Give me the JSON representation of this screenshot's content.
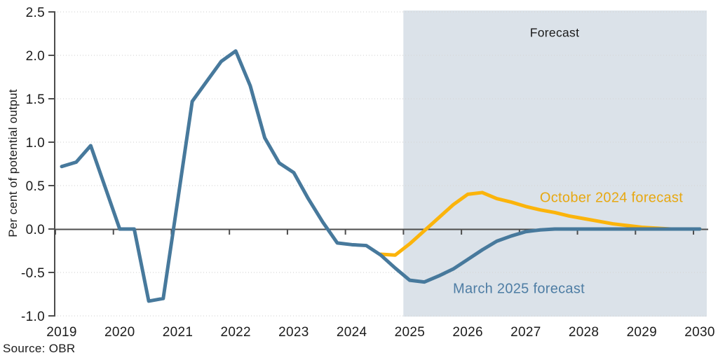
{
  "source": "Source: OBR",
  "chart_data": {
    "type": "line",
    "title": "",
    "xlabel": "",
    "ylabel": "Per cent of potential output",
    "ylim": [
      -1.0,
      2.5
    ],
    "xlim": [
      2018.9,
      2030.1
    ],
    "grid": "horizontal dotted gridlines at 0.5 intervals, solid dark zero line",
    "legend_position": "inline labels next to lines",
    "y_ticks": [
      2.5,
      2.0,
      1.5,
      1.0,
      0.5,
      0.0,
      -0.5,
      -1.0
    ],
    "x_ticks": [
      2019,
      2020,
      2021,
      2022,
      2023,
      2024,
      2025,
      2026,
      2027,
      2028,
      2029,
      2030
    ],
    "axis_color": "#4d4d4d",
    "gridline_color": "#d6d6d6",
    "forecast_region": {
      "label": "Forecast",
      "x_start": 2024.89,
      "x_end": 2030.12,
      "color": "#dbe2e9"
    },
    "series": [
      {
        "name": "October 2024 forecast",
        "color": "#fbb40b",
        "label_color": "#e7a812",
        "x": [
          2024.5,
          2024.75,
          2025.0,
          2025.25,
          2025.5,
          2025.75,
          2026.0,
          2026.25,
          2026.5,
          2026.75,
          2027.0,
          2027.25,
          2027.5,
          2027.75,
          2028.0,
          2028.25,
          2028.5,
          2028.75,
          2029.0,
          2029.25,
          2029.5,
          2029.75,
          2030.0
        ],
        "values": [
          -0.29,
          -0.3,
          -0.17,
          -0.02,
          0.13,
          0.28,
          0.4,
          0.42,
          0.35,
          0.31,
          0.26,
          0.22,
          0.19,
          0.15,
          0.12,
          0.09,
          0.06,
          0.04,
          0.02,
          0.01,
          0.0,
          0.0,
          0.0
        ]
      },
      {
        "name": "March 2025 forecast",
        "color": "#47799c",
        "label_color": "#4e7da4",
        "x": [
          2019.0,
          2019.25,
          2019.5,
          2019.75,
          2020.0,
          2020.25,
          2020.5,
          2020.75,
          2021.0,
          2021.25,
          2021.5,
          2021.75,
          2022.0,
          2022.25,
          2022.5,
          2022.75,
          2023.0,
          2023.25,
          2023.5,
          2023.75,
          2024.0,
          2024.25,
          2024.5,
          2024.75,
          2025.0,
          2025.25,
          2025.5,
          2025.75,
          2026.0,
          2026.25,
          2026.5,
          2026.75,
          2027.0,
          2027.25,
          2027.5,
          2027.75,
          2028.0,
          2028.25,
          2028.5,
          2028.75,
          2029.0,
          2029.25,
          2029.5,
          2029.75,
          2030.0
        ],
        "values": [
          0.72,
          0.77,
          0.96,
          0.48,
          0.0,
          0.0,
          -0.83,
          -0.8,
          0.33,
          1.47,
          1.7,
          1.93,
          2.05,
          1.65,
          1.05,
          0.76,
          0.65,
          0.35,
          0.08,
          -0.16,
          -0.18,
          -0.19,
          -0.3,
          -0.45,
          -0.59,
          -0.61,
          -0.54,
          -0.46,
          -0.35,
          -0.24,
          -0.14,
          -0.08,
          -0.03,
          -0.01,
          0.0,
          0.0,
          0.0,
          0.0,
          0.0,
          0.0,
          0.0,
          0.0,
          0.0,
          0.0,
          0.0
        ]
      }
    ]
  }
}
